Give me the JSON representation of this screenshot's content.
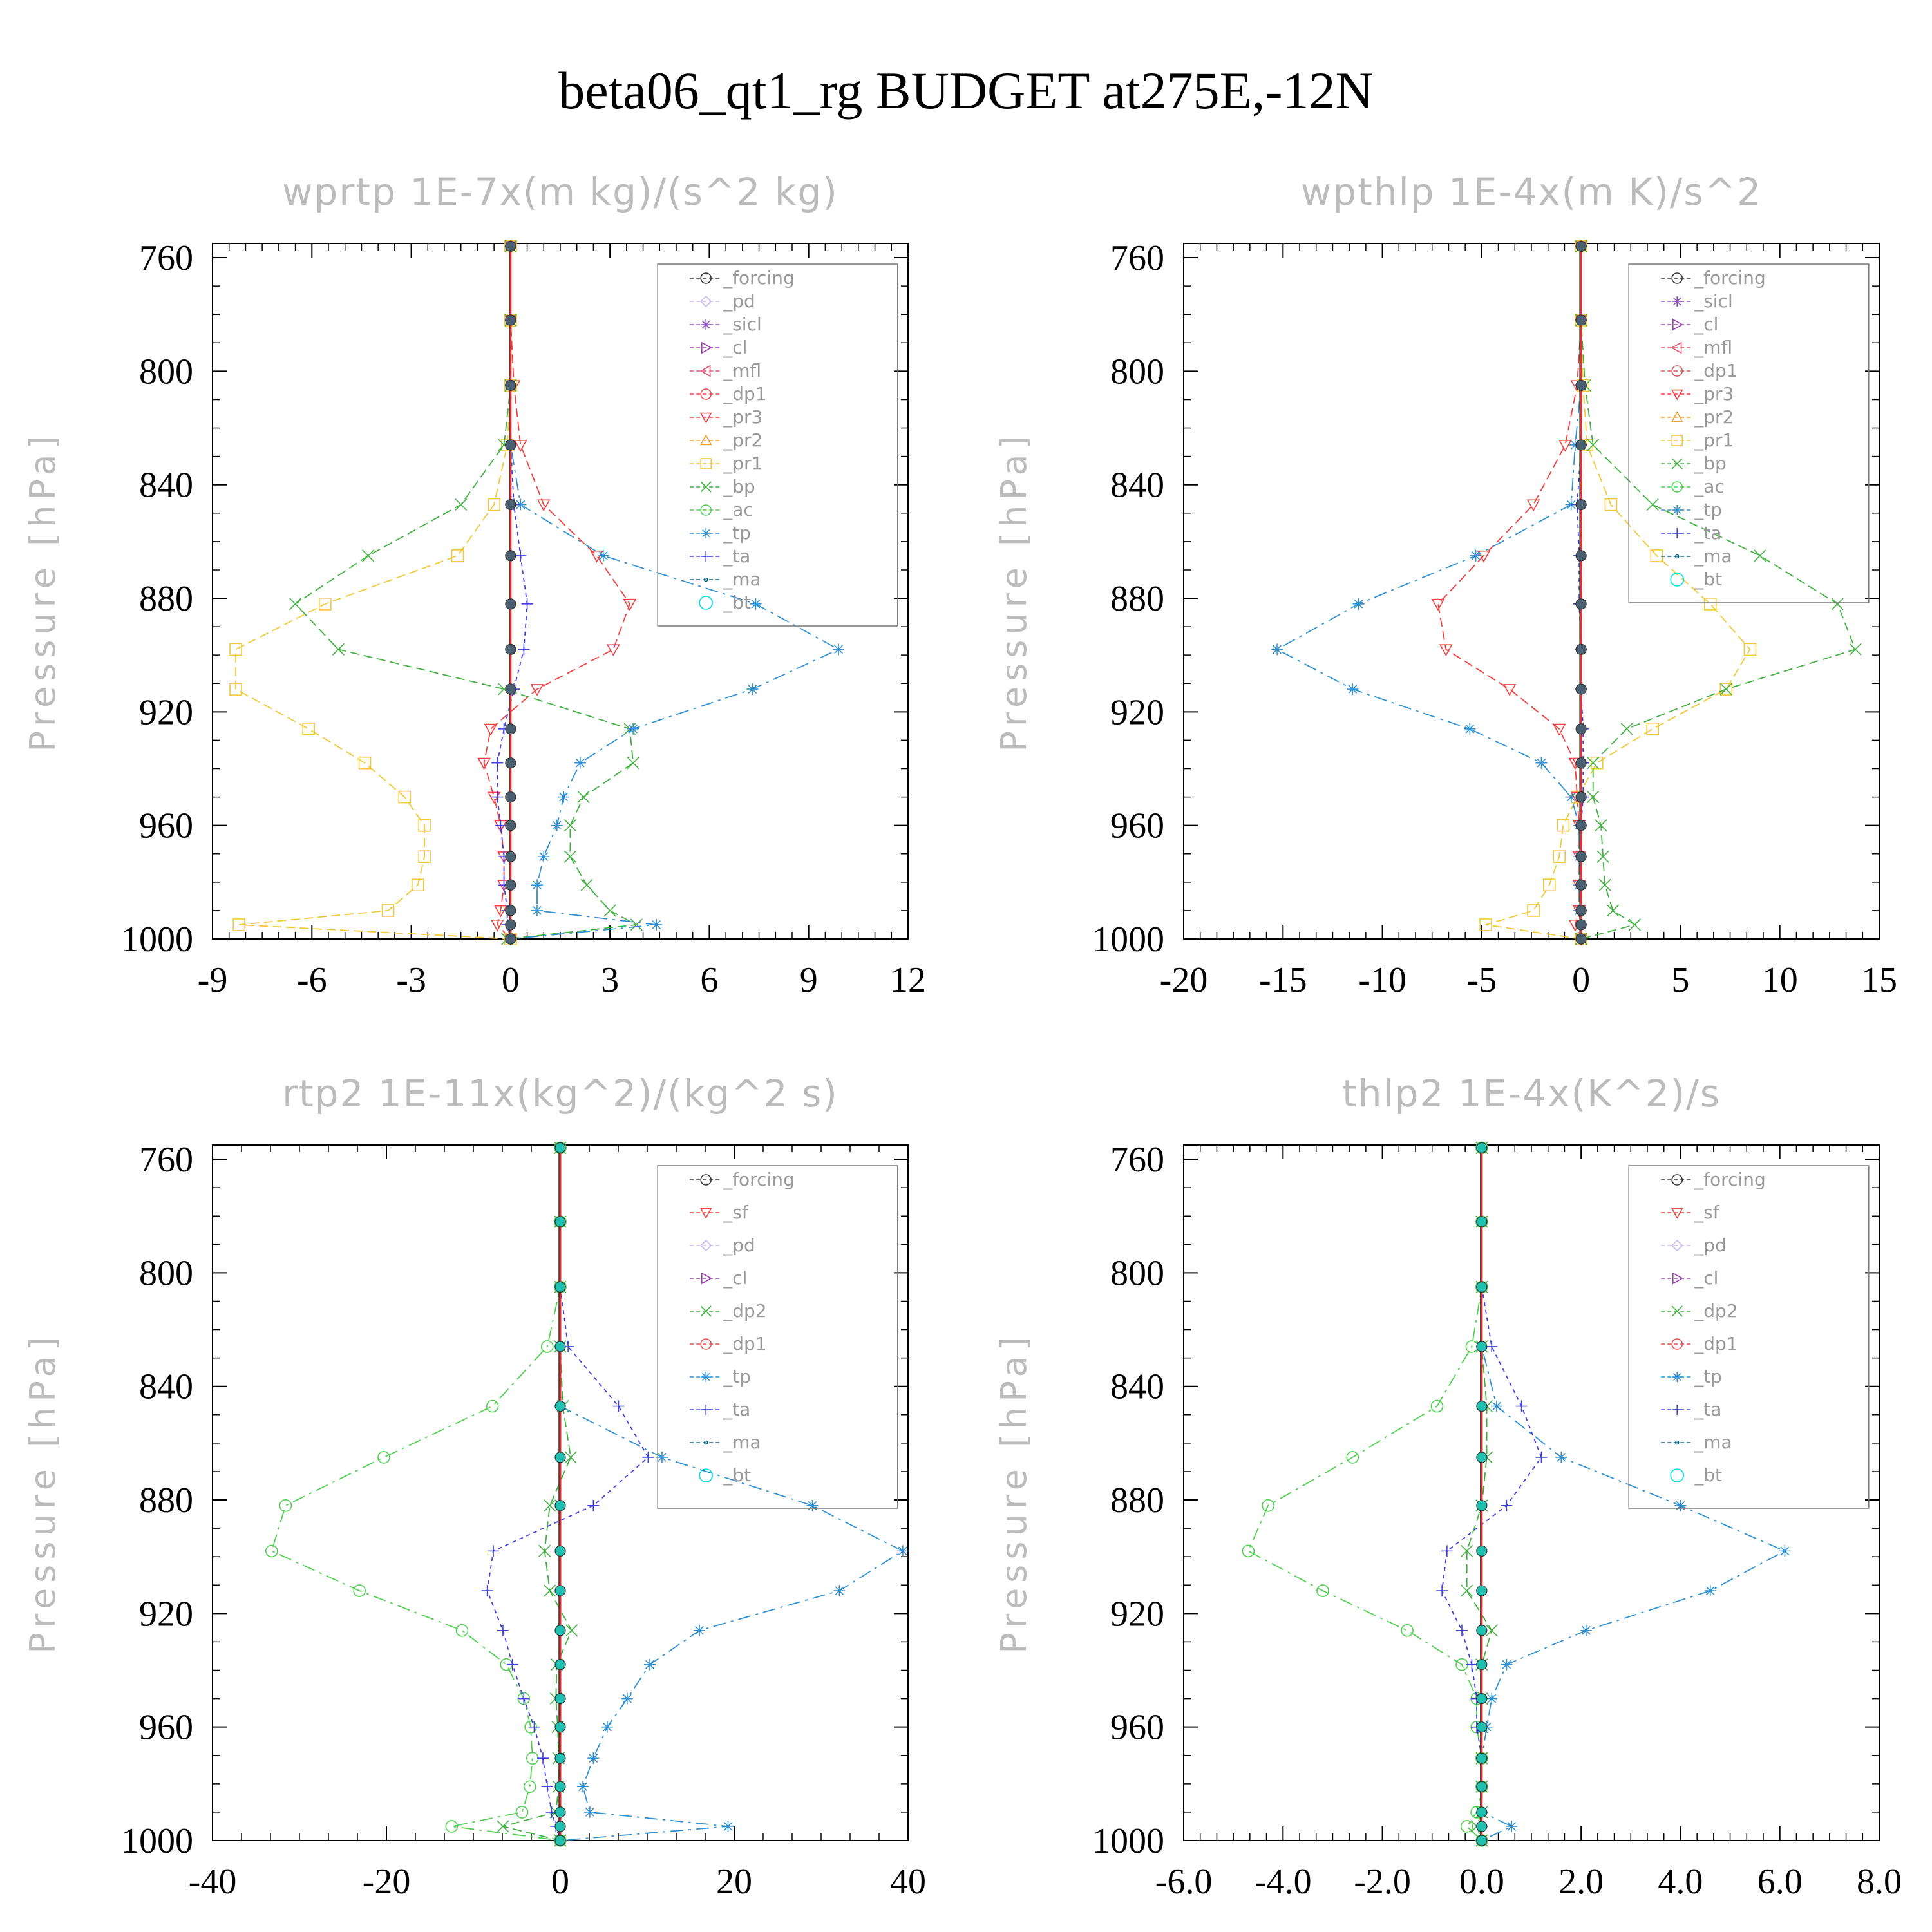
{
  "title": "beta06_qt1_rg  BUDGET at275E,-12N",
  "colors": {
    "forcing": "#333333",
    "pd": "#c8b8f0",
    "sicl": "#8a50c0",
    "cl": "#9a40b0",
    "mfl": "#e05070",
    "dp1": "#e05050",
    "pr3": "#f04040",
    "pr2": "#f0a030",
    "pr1": "#f0c838",
    "bp": "#40b040",
    "ac": "#50d050",
    "tp": "#3090d0",
    "ta": "#4040e0",
    "ma": "#106080",
    "bt": "#00e0e0"
  },
  "chart_data": [
    {
      "type": "line",
      "title": "wprtp  1E-7x(m kg)/(s^2 kg)",
      "ylabel": "Pressure [hPa]",
      "xlim": [
        -9,
        12
      ],
      "ylim": [
        1000,
        755
      ],
      "xticks": [
        "-9",
        "-6",
        "-3",
        "0",
        "3",
        "6",
        "9",
        "12"
      ],
      "yticks": [
        "760",
        "800",
        "840",
        "880",
        "920",
        "960",
        "1000"
      ],
      "y": [
        756,
        782,
        805,
        826,
        847,
        865,
        882,
        898,
        912,
        926,
        938,
        950,
        960,
        971,
        981,
        990,
        995,
        1000
      ],
      "legend": [
        "_forcing",
        "_pd",
        "_sicl",
        "_cl",
        "_mfl",
        "_dp1",
        "_pr3",
        "_pr2",
        "_pr1",
        "_bp",
        "_ac",
        "_tp",
        "_ta",
        "_ma",
        "_bt"
      ],
      "series": [
        {
          "name": "_pr3",
          "color": "#f04040",
          "values": [
            0,
            0,
            0.1,
            0.3,
            1.0,
            2.6,
            3.6,
            3.1,
            0.8,
            -0.6,
            -0.8,
            -0.5,
            -0.3,
            -0.2,
            -0.2,
            -0.3,
            -0.4,
            0
          ]
        },
        {
          "name": "_pr1",
          "color": "#f0c838",
          "values": [
            0,
            0,
            0,
            -0.1,
            -0.5,
            -1.6,
            -5.6,
            -8.3,
            -8.3,
            -6.1,
            -4.4,
            -3.2,
            -2.6,
            -2.6,
            -2.8,
            -3.7,
            -8.2,
            0
          ]
        },
        {
          "name": "_bp",
          "color": "#40b040",
          "values": [
            0,
            0,
            0,
            -0.2,
            -1.5,
            -4.3,
            -6.5,
            -5.2,
            -0.2,
            3.6,
            3.7,
            2.2,
            1.8,
            1.8,
            2.3,
            3.0,
            3.8,
            -0.1
          ]
        },
        {
          "name": "_tp",
          "color": "#3090d0",
          "values": [
            0,
            0,
            0,
            0,
            0.3,
            2.8,
            7.4,
            9.9,
            7.3,
            3.7,
            2.1,
            1.6,
            1.4,
            1.0,
            0.8,
            0.8,
            4.4,
            0
          ]
        },
        {
          "name": "_ta",
          "color": "#4040e0",
          "values": [
            0,
            0,
            0,
            0,
            0.1,
            0.3,
            0.5,
            0.4,
            0.1,
            -0.2,
            -0.4,
            -0.4,
            -0.3,
            -0.2,
            -0.2,
            -0.1,
            -0.1,
            0
          ]
        }
      ]
    },
    {
      "type": "line",
      "title": "wpthlp  1E-4x(m K)/s^2",
      "ylabel": "Pressure [hPa]",
      "xlim": [
        -20,
        15
      ],
      "ylim": [
        1000,
        755
      ],
      "xticks": [
        "-20",
        "-15",
        "-10",
        "-5",
        "0",
        "5",
        "10",
        "15"
      ],
      "yticks": [
        "760",
        "800",
        "840",
        "880",
        "920",
        "960",
        "1000"
      ],
      "y": [
        756,
        782,
        805,
        826,
        847,
        865,
        882,
        898,
        912,
        926,
        938,
        950,
        960,
        971,
        981,
        990,
        995,
        1000
      ],
      "legend": [
        "_forcing",
        "_sicl",
        "_cl",
        "_mfl",
        "_dp1",
        "_pr3",
        "_pr2",
        "_pr1",
        "_bp",
        "_ac",
        "_tp",
        "_ta",
        "_ma",
        "_bt"
      ],
      "series": [
        {
          "name": "_pr3",
          "color": "#f04040",
          "values": [
            0,
            0,
            -0.2,
            -0.8,
            -2.4,
            -4.9,
            -7.2,
            -6.8,
            -3.6,
            -1.1,
            -0.3,
            -0.2,
            -0.1,
            -0.1,
            -0.1,
            -0.1,
            -0.3,
            0
          ]
        },
        {
          "name": "_pr1",
          "color": "#f0c838",
          "values": [
            0,
            0,
            0.1,
            0.3,
            1.5,
            3.8,
            6.5,
            8.5,
            7.3,
            3.6,
            0.8,
            -0.2,
            -0.9,
            -1.1,
            -1.6,
            -2.4,
            -4.8,
            0
          ]
        },
        {
          "name": "_bp",
          "color": "#40b040",
          "values": [
            0,
            0,
            0.2,
            0.6,
            3.6,
            9.0,
            12.9,
            13.8,
            7.3,
            2.3,
            0.6,
            0.6,
            1.0,
            1.1,
            1.2,
            1.6,
            2.7,
            0
          ]
        },
        {
          "name": "_tp",
          "color": "#3090d0",
          "values": [
            0,
            0,
            0,
            -0.3,
            -0.5,
            -5.3,
            -11.2,
            -15.3,
            -11.5,
            -5.6,
            -2.0,
            -0.5,
            -0.1,
            -0.1,
            -0.1,
            -0.1,
            0,
            0
          ]
        },
        {
          "name": "_ta",
          "color": "#4040e0",
          "values": [
            0,
            0,
            0,
            0,
            -0.2,
            -0.1,
            -0.1,
            0,
            0,
            0.1,
            0.1,
            0.1,
            0,
            0,
            0,
            0,
            0,
            0
          ]
        }
      ]
    },
    {
      "type": "line",
      "title": "rtp2  1E-11x(kg^2)/(kg^2 s)",
      "ylabel": "Pressure [hPa]",
      "xlim": [
        -40,
        40
      ],
      "ylim": [
        1000,
        755
      ],
      "xticks": [
        "-40",
        "-20",
        "0",
        "20",
        "40"
      ],
      "yticks": [
        "760",
        "800",
        "840",
        "880",
        "920",
        "960",
        "1000"
      ],
      "y": [
        756,
        782,
        805,
        826,
        847,
        865,
        882,
        898,
        912,
        926,
        938,
        950,
        960,
        971,
        981,
        990,
        995,
        1000
      ],
      "legend": [
        "_forcing",
        "_sf",
        "_pd",
        "_cl",
        "_dp2",
        "_dp1",
        "_tp",
        "_ta",
        "_ma",
        "_bt"
      ],
      "series": [
        {
          "name": "_dp1",
          "color": "#50d050",
          "values": [
            0,
            0,
            0,
            -1.5,
            -7.8,
            -20.3,
            -31.6,
            -33.2,
            -23.1,
            -11.3,
            -6.2,
            -4.2,
            -3.4,
            -3.2,
            -3.5,
            -4.4,
            -12.5,
            0
          ]
        },
        {
          "name": "_dp2",
          "color": "#40b040",
          "values": [
            0,
            0,
            0,
            0,
            0.3,
            1.2,
            -1.2,
            -1.8,
            -1.2,
            1.3,
            -0.4,
            -0.5,
            -0.3,
            -0.2,
            -0.2,
            -0.5,
            -6.6,
            0
          ]
        },
        {
          "name": "_tp",
          "color": "#3090d0",
          "values": [
            0,
            0,
            0,
            0,
            0,
            11.7,
            29.0,
            39.4,
            32.1,
            16.0,
            10.3,
            7.7,
            5.4,
            3.8,
            2.6,
            3.4,
            19.3,
            0
          ]
        },
        {
          "name": "_ta",
          "color": "#4040e0",
          "values": [
            0,
            0,
            0,
            0.9,
            6.7,
            10.1,
            3.8,
            -7.7,
            -8.4,
            -6.6,
            -5.5,
            -4.2,
            -3.0,
            -2.0,
            -1.5,
            -1.0,
            -0.5,
            0
          ]
        }
      ]
    },
    {
      "type": "line",
      "title": "thlp2  1E-4x(K^2)/s",
      "ylabel": "Pressure [hPa]",
      "xlim": [
        -6,
        8
      ],
      "ylim": [
        1000,
        755
      ],
      "xticks": [
        "-6.0",
        "-4.0",
        "-2.0",
        "0.0",
        "2.0",
        "4.0",
        "6.0",
        "8.0"
      ],
      "yticks": [
        "760",
        "800",
        "840",
        "880",
        "920",
        "960",
        "1000"
      ],
      "y": [
        756,
        782,
        805,
        826,
        847,
        865,
        882,
        898,
        912,
        926,
        938,
        950,
        960,
        971,
        981,
        990,
        995,
        1000
      ],
      "legend": [
        "_forcing",
        "_sf",
        "_pd",
        "_cl",
        "_dp2",
        "_dp1",
        "_tp",
        "_ta",
        "_ma",
        "_bt"
      ],
      "series": [
        {
          "name": "_dp1",
          "color": "#50d050",
          "values": [
            0,
            0,
            0,
            -0.2,
            -0.9,
            -2.6,
            -4.3,
            -4.7,
            -3.2,
            -1.5,
            -0.4,
            -0.1,
            -0.1,
            0,
            0,
            -0.1,
            -0.3,
            0
          ]
        },
        {
          "name": "_dp2",
          "color": "#40b040",
          "values": [
            0,
            0,
            0,
            0,
            0.1,
            0.1,
            0,
            -0.3,
            -0.3,
            0.2,
            0,
            0,
            0,
            0,
            0,
            0,
            -0.1,
            0
          ]
        },
        {
          "name": "_tp",
          "color": "#3090d0",
          "values": [
            0,
            0,
            0,
            0,
            0.3,
            1.6,
            4.0,
            6.1,
            4.6,
            2.1,
            0.5,
            0.2,
            0.1,
            0,
            0,
            0,
            0.6,
            0
          ]
        },
        {
          "name": "_ta",
          "color": "#4040e0",
          "values": [
            0,
            0,
            0,
            0.2,
            0.8,
            1.2,
            0.5,
            -0.7,
            -0.8,
            -0.4,
            -0.2,
            -0.1,
            -0.1,
            0,
            0,
            0,
            0,
            0
          ]
        }
      ]
    }
  ]
}
